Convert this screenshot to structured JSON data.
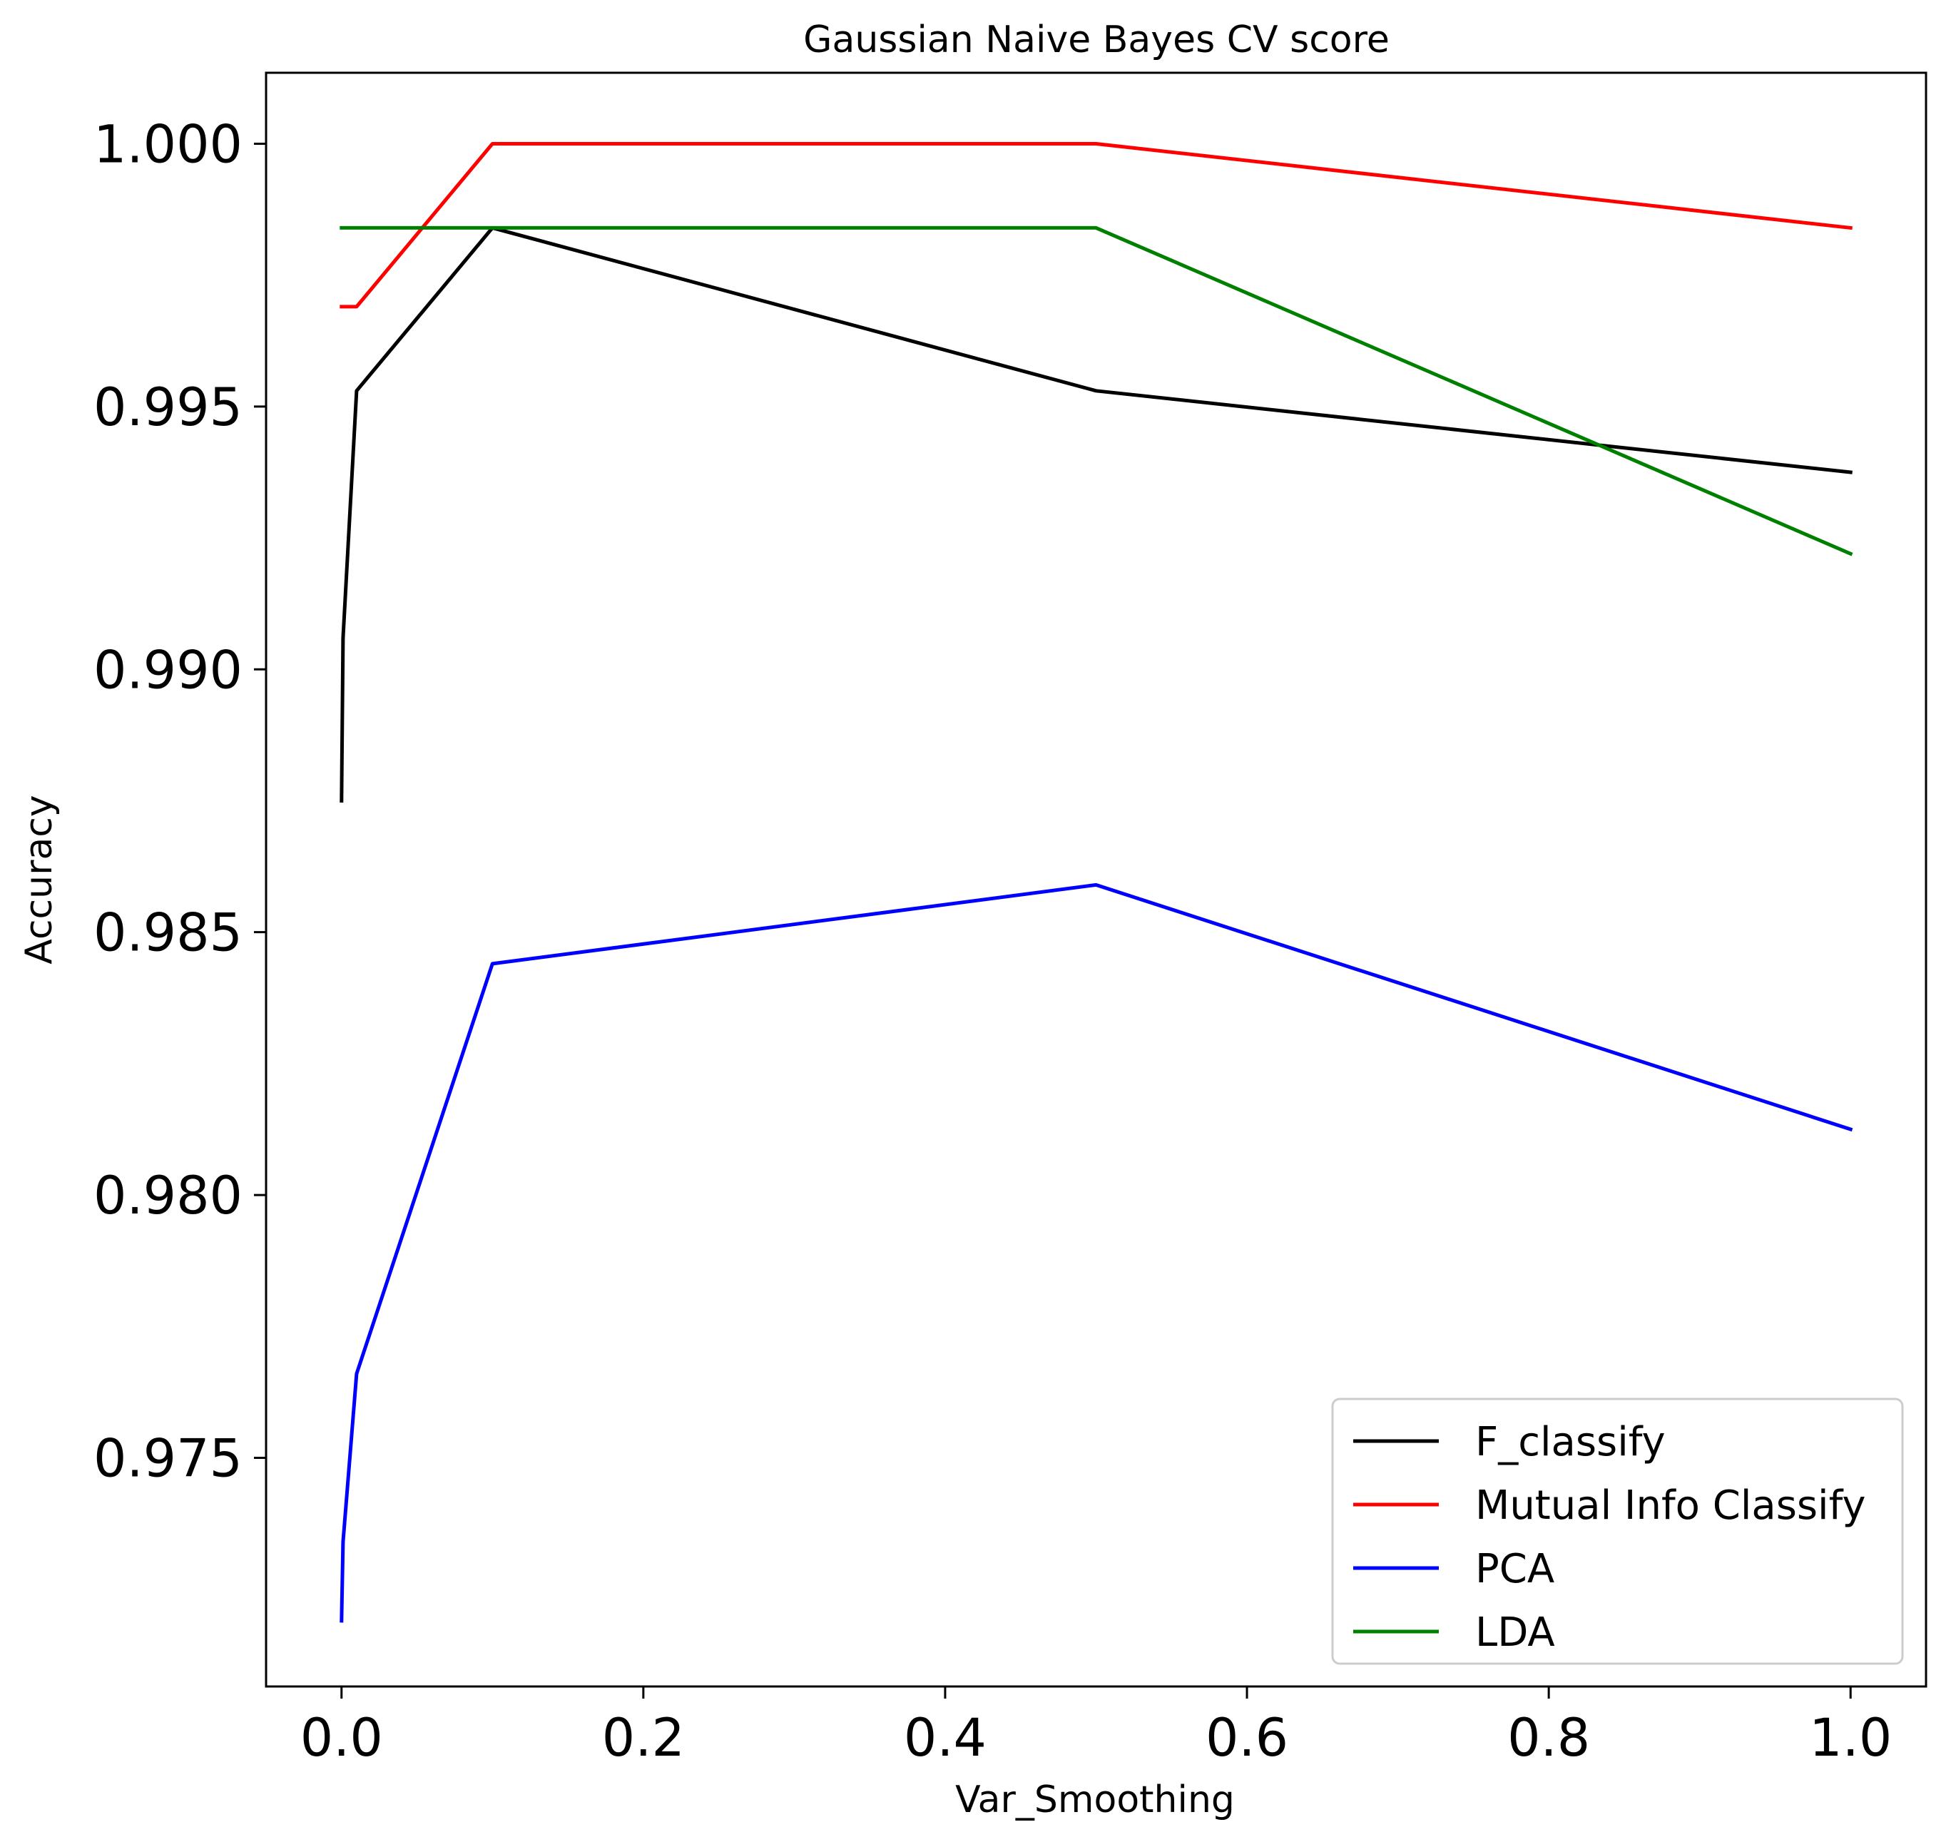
{
  "chart_data": {
    "type": "line",
    "title": "Gaussian Naive Bayes CV score",
    "xlabel": "Var_Smoothing",
    "ylabel": "Accuracy",
    "xlim": [
      -0.05,
      1.05
    ],
    "ylim": [
      0.97065,
      1.00135
    ],
    "x_ticks": [
      0.0,
      0.2,
      0.4,
      0.6,
      0.8,
      1.0
    ],
    "x_tick_labels": [
      "0.0",
      "0.2",
      "0.4",
      "0.6",
      "0.8",
      "1.0"
    ],
    "y_ticks": [
      0.975,
      0.98,
      0.985,
      0.99,
      0.995,
      1.0
    ],
    "y_tick_labels": [
      "0.975",
      "0.980",
      "0.985",
      "0.990",
      "0.995",
      "1.000"
    ],
    "grid": false,
    "legend_position": "lower-right",
    "x": [
      1e-09,
      1e-05,
      0.001,
      0.01,
      0.1,
      0.5,
      1.0
    ],
    "series": [
      {
        "name": "F_classify",
        "color": "#000000",
        "values": [
          0.9875,
          0.9875,
          0.9906,
          0.9953,
          0.9984,
          0.9953,
          0.99375
        ]
      },
      {
        "name": "Mutual Info Classify",
        "color": "#ff0000",
        "values": [
          0.9969,
          0.9969,
          0.9969,
          0.9969,
          1.0,
          1.0,
          0.9984
        ]
      },
      {
        "name": "PCA",
        "color": "#0000ff",
        "values": [
          0.9719,
          0.9719,
          0.9734,
          0.9766,
          0.9844,
          0.9859,
          0.98125
        ]
      },
      {
        "name": "LDA",
        "color": "#008000",
        "values": [
          0.9984,
          0.9984,
          0.9984,
          0.9984,
          0.9984,
          0.9984,
          0.9922
        ]
      }
    ]
  }
}
